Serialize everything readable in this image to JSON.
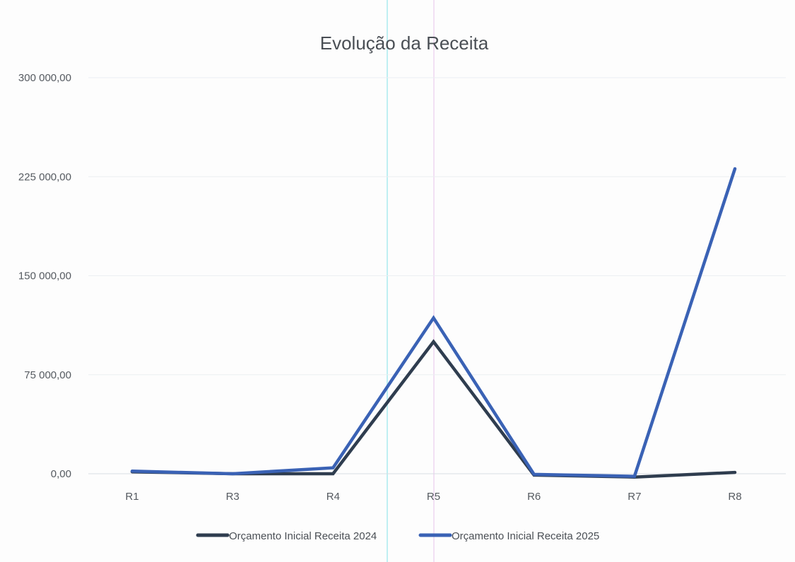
{
  "chart_data": {
    "type": "line",
    "title": "Evolução da Receita",
    "categories": [
      "R1",
      "R3",
      "R4",
      "R5",
      "R6",
      "R7",
      "R8"
    ],
    "y_ticks": [
      "0,00",
      "75 000,00",
      "150 000,00",
      "225 000,00",
      "300 000,00"
    ],
    "ylim": [
      0,
      300000
    ],
    "grid": true,
    "legend_position": "bottom",
    "series": [
      {
        "name": "Orçamento Inicial  Receita 2024",
        "color": "#2f3d4f",
        "values": [
          1500,
          0,
          0,
          100000,
          -1000,
          -2500,
          1000
        ]
      },
      {
        "name": "Orçamento Inicial Receita 2025",
        "color": "#3a62b5",
        "values": [
          2000,
          0,
          4500,
          118000,
          -500,
          -2000,
          231000
        ]
      }
    ]
  }
}
